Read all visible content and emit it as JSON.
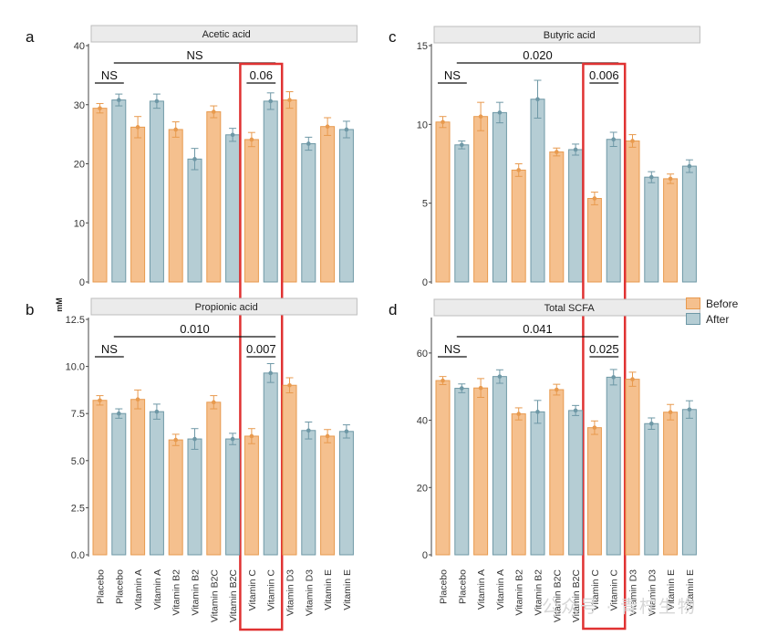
{
  "colors": {
    "before_fill": "#F5C08E",
    "before_stroke": "#E89A4E",
    "after_fill": "#B5CDD4",
    "after_stroke": "#6E98A6",
    "highlight": "#E03232",
    "strip": "#EBEBEB",
    "axis": "#444444"
  },
  "legend": {
    "items": [
      "Before",
      "After"
    ]
  },
  "y_axis_label": "mM",
  "watermark": "公众号 · 青柠生物",
  "chart_data": [
    {
      "type": "bar",
      "panel": "a",
      "title": "Acetic acid",
      "categories": [
        "Placebo",
        "Placebo",
        "Vitamin A",
        "Vitamin A",
        "Vitamin B2",
        "Vitamin B2",
        "Vitamin B2C",
        "Vitamin B2C",
        "Vitamin C",
        "Vitamin C",
        "Vitamin D3",
        "Vitamin D3",
        "Vitamin E",
        "Vitamin E"
      ],
      "groups": [
        "Before",
        "After",
        "Before",
        "After",
        "Before",
        "After",
        "Before",
        "After",
        "Before",
        "After",
        "Before",
        "After",
        "Before",
        "After"
      ],
      "values": [
        29.4,
        30.8,
        26.2,
        30.6,
        25.8,
        20.8,
        28.8,
        24.9,
        24.1,
        30.6,
        30.8,
        23.4,
        26.3,
        25.8
      ],
      "errors": [
        0.8,
        1.0,
        1.8,
        1.2,
        1.3,
        1.8,
        1.0,
        1.1,
        1.2,
        1.4,
        1.4,
        1.1,
        1.5,
        1.4
      ],
      "ylim": [
        0,
        40
      ],
      "yticks": [
        0,
        10,
        20,
        30,
        40
      ],
      "show_xlabels": false,
      "annotations": [
        {
          "text": "NS",
          "from": 0,
          "to": 1,
          "level": 0
        },
        {
          "text": "NS",
          "from": 1,
          "to": 9,
          "level": 1
        },
        {
          "text": "0.06",
          "from": 8,
          "to": 9,
          "level": 0
        }
      ]
    },
    {
      "type": "bar",
      "panel": "b",
      "title": "Propionic acid",
      "categories": [
        "Placebo",
        "Placebo",
        "Vitamin A",
        "Vitamin A",
        "Vitamin B2",
        "Vitamin B2",
        "Vitamin B2C",
        "Vitamin B2C",
        "Vitamin C",
        "Vitamin C",
        "Vitamin D3",
        "Vitamin D3",
        "Vitamin E",
        "Vitamin E"
      ],
      "groups": [
        "Before",
        "After",
        "Before",
        "After",
        "Before",
        "After",
        "Before",
        "After",
        "Before",
        "After",
        "Before",
        "After",
        "Before",
        "After"
      ],
      "values": [
        8.2,
        7.5,
        8.25,
        7.6,
        6.1,
        6.15,
        8.1,
        6.15,
        6.3,
        9.65,
        9.0,
        6.6,
        6.3,
        6.55
      ],
      "errors": [
        0.25,
        0.25,
        0.5,
        0.4,
        0.3,
        0.55,
        0.35,
        0.3,
        0.4,
        0.5,
        0.4,
        0.45,
        0.35,
        0.35
      ],
      "ylim": [
        0,
        12.5
      ],
      "yticks": [
        0,
        2.5,
        5,
        7.5,
        10,
        12.5
      ],
      "ytick_labels": [
        "0.0",
        "2.5",
        "5.0",
        "7.5",
        "10.0",
        "12.5"
      ],
      "show_xlabels": true,
      "annotations": [
        {
          "text": "NS",
          "from": 0,
          "to": 1,
          "level": 0
        },
        {
          "text": "0.010",
          "from": 1,
          "to": 9,
          "level": 1
        },
        {
          "text": "0.007",
          "from": 8,
          "to": 9,
          "level": 0
        }
      ]
    },
    {
      "type": "bar",
      "panel": "c",
      "title": "Butyric acid",
      "categories": [
        "Placebo",
        "Placebo",
        "Vitamin A",
        "Vitamin A",
        "Vitamin B2",
        "Vitamin B2",
        "Vitamin B2C",
        "Vitamin B2C",
        "Vitamin C",
        "Vitamin C",
        "Vitamin D3",
        "Vitamin D3",
        "Vitamin E",
        "Vitamin E"
      ],
      "groups": [
        "Before",
        "After",
        "Before",
        "After",
        "Before",
        "After",
        "Before",
        "After",
        "Before",
        "After",
        "Before",
        "After",
        "Before",
        "After"
      ],
      "values": [
        10.15,
        8.7,
        10.5,
        10.75,
        7.1,
        11.6,
        8.25,
        8.4,
        5.3,
        9.05,
        8.95,
        6.65,
        6.55,
        7.35
      ],
      "errors": [
        0.35,
        0.25,
        0.9,
        0.65,
        0.4,
        1.2,
        0.25,
        0.35,
        0.4,
        0.45,
        0.4,
        0.35,
        0.3,
        0.4
      ],
      "ylim": [
        0,
        15
      ],
      "yticks": [
        0,
        5,
        10,
        15
      ],
      "show_xlabels": false,
      "annotations": [
        {
          "text": "NS",
          "from": 0,
          "to": 1,
          "level": 0
        },
        {
          "text": "0.020",
          "from": 1,
          "to": 9,
          "level": 1
        },
        {
          "text": "0.006",
          "from": 8,
          "to": 9,
          "level": 0
        }
      ]
    },
    {
      "type": "bar",
      "panel": "d",
      "title": "Total SCFA",
      "categories": [
        "Placebo",
        "Placebo",
        "Vitamin A",
        "Vitamin A",
        "Vitamin B2",
        "Vitamin B2",
        "Vitamin B2C",
        "Vitamin B2C",
        "Vitamin C",
        "Vitamin C",
        "Vitamin D3",
        "Vitamin D3",
        "Vitamin E",
        "Vitamin E"
      ],
      "groups": [
        "Before",
        "After",
        "Before",
        "After",
        "Before",
        "After",
        "Before",
        "After",
        "Before",
        "After",
        "Before",
        "After",
        "Before",
        "After"
      ],
      "values": [
        51.8,
        49.5,
        49.6,
        53.0,
        41.9,
        42.5,
        49.1,
        42.9,
        37.8,
        52.8,
        52.2,
        39.0,
        42.4,
        43.2
      ],
      "errors": [
        1.2,
        1.3,
        2.8,
        2.0,
        1.8,
        3.4,
        1.6,
        1.5,
        2.0,
        2.3,
        2.1,
        1.7,
        2.3,
        2.6
      ],
      "ylim": [
        0,
        70
      ],
      "yticks": [
        0,
        20,
        40,
        60
      ],
      "show_xlabels": true,
      "annotations": [
        {
          "text": "NS",
          "from": 0,
          "to": 1,
          "level": 0
        },
        {
          "text": "0.041",
          "from": 1,
          "to": 9,
          "level": 1
        },
        {
          "text": "0.025",
          "from": 8,
          "to": 9,
          "level": 0
        }
      ]
    }
  ]
}
